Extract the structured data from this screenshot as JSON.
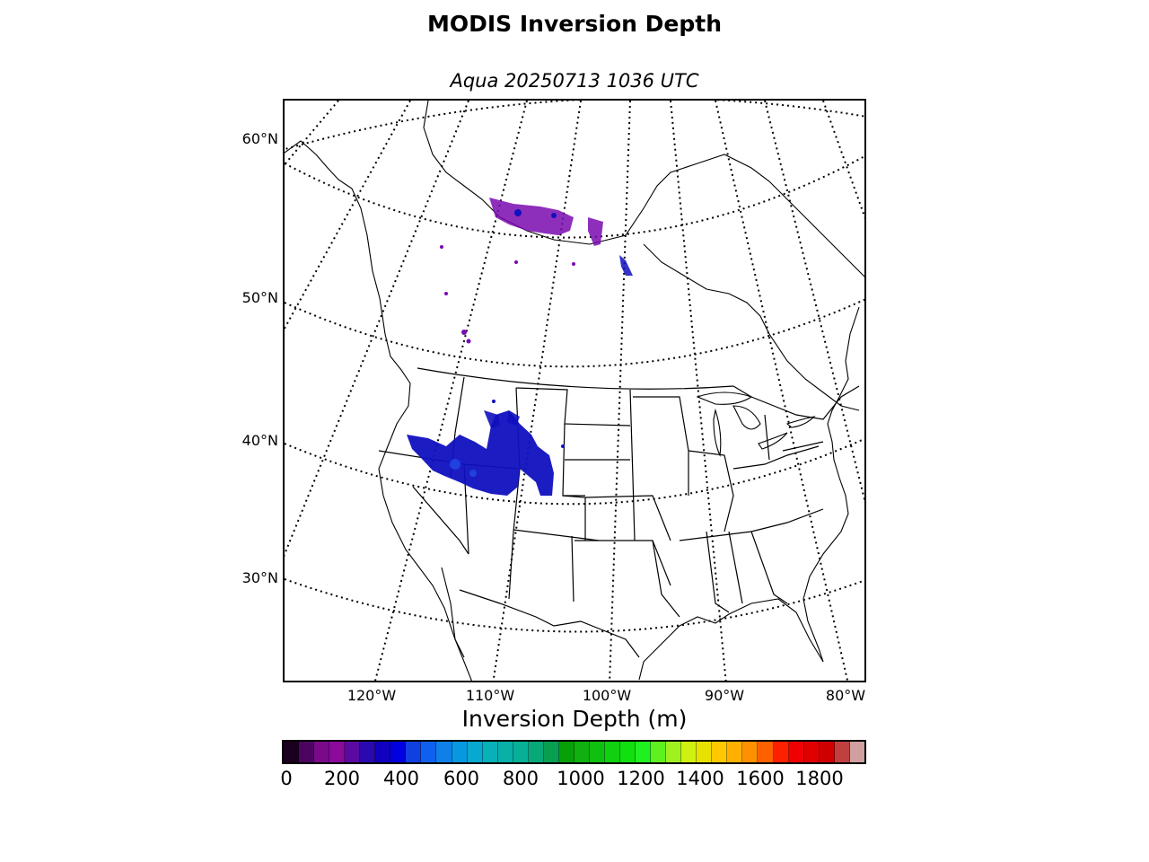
{
  "title": "MODIS Inversion Depth",
  "subtitle": "Aqua 20250713 1036 UTC",
  "latitude_labels": [
    "60°N",
    "50°N",
    "40°N",
    "30°N"
  ],
  "longitude_labels": [
    "120°W",
    "110°W",
    "100°W",
    "90°W",
    "80°W"
  ],
  "colorbar": {
    "label": "Inversion Depth (m)",
    "ticks": [
      "0",
      "200",
      "400",
      "600",
      "800",
      "1000",
      "1200",
      "1400",
      "1600",
      "1800"
    ],
    "colors": [
      "#1a0020",
      "#4b0560",
      "#7a0a8a",
      "#8a0a9a",
      "#5a0aa0",
      "#2a0ab0",
      "#1000c0",
      "#0000e0",
      "#1040e0",
      "#1060f0",
      "#1080e8",
      "#0898e0",
      "#08a8d0",
      "#08b0b8",
      "#08b0a8",
      "#08b098",
      "#08a878",
      "#08a050",
      "#08a008",
      "#10b010",
      "#10c010",
      "#10d010",
      "#10e010",
      "#20f020",
      "#60f020",
      "#a0f020",
      "#d0f010",
      "#e8e000",
      "#ffc800",
      "#ffb000",
      "#ff9000",
      "#ff6000",
      "#ff2000",
      "#f00000",
      "#e00000",
      "#d00000",
      "#c04040",
      "#d0a0a0"
    ]
  },
  "map": {
    "region": "North America",
    "data_colors": {
      "purple": "#7a0ab0",
      "blue": "#1010c0"
    }
  }
}
